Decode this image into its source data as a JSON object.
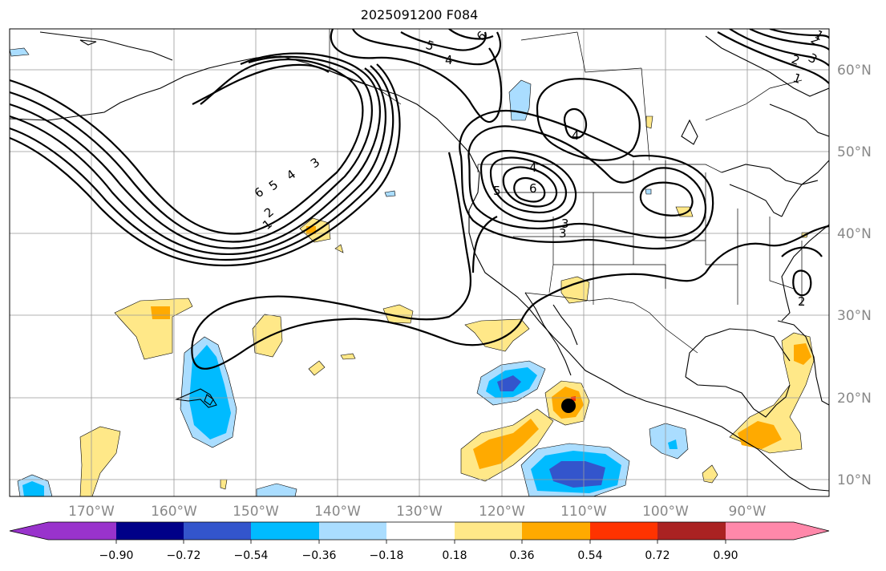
{
  "title": "2025091200 F084",
  "map": {
    "projection": "PlateCarree",
    "extent": {
      "lon_min": -180,
      "lon_max": -80,
      "lat_min": 8,
      "lat_max": 65
    },
    "lon_ticks": [
      "170°W",
      "160°W",
      "150°W",
      "140°W",
      "130°W",
      "120°W",
      "110°W",
      "100°W",
      "90°W"
    ],
    "lat_ticks": [
      "10°N",
      "20°N",
      "30°N",
      "40°N",
      "50°N",
      "60°N"
    ],
    "gridlines": true,
    "contour_labels": [
      "6",
      "5",
      "4",
      "3",
      "2",
      "1",
      "6",
      "5",
      "4",
      "3",
      "6",
      "5",
      "4",
      "3",
      "4",
      "2",
      "1",
      "3",
      "2",
      "1",
      "2"
    ],
    "marker": {
      "name": "storm-center",
      "lon": -110,
      "lat": 19
    }
  },
  "colorbar": {
    "ticks": [
      "−0.90",
      "−0.72",
      "−0.54",
      "−0.36",
      "−0.18",
      "0.18",
      "0.36",
      "0.54",
      "0.72",
      "0.90"
    ],
    "colors": [
      "#9933cc",
      "#000088",
      "#3355cc",
      "#00bbff",
      "#aaddff",
      "#ffffff",
      "#ffe888",
      "#ffaa00",
      "#ff3300",
      "#aa2222",
      "#ff88aa"
    ]
  }
}
